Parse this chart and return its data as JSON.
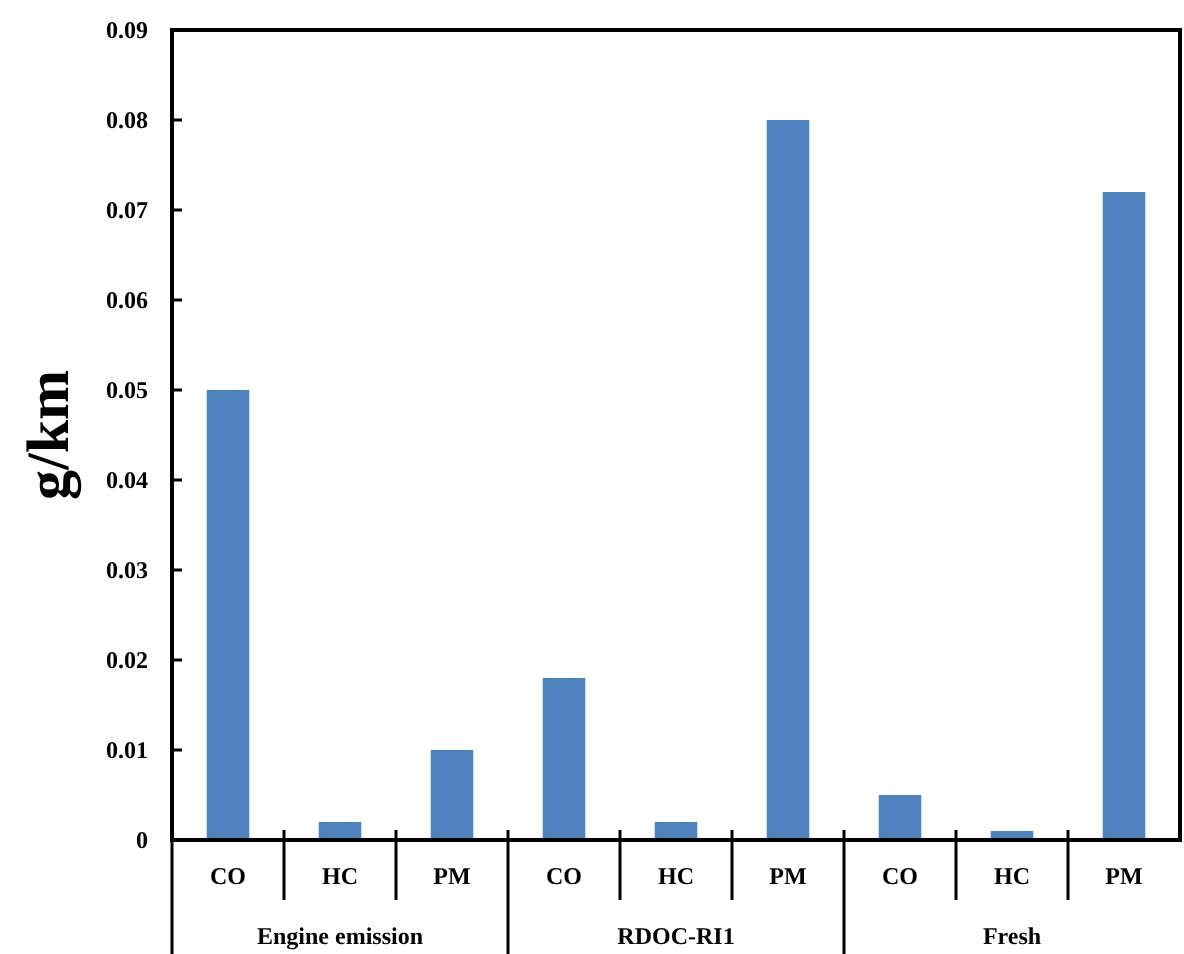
{
  "chart_data": {
    "type": "bar",
    "ylabel": "g/km",
    "categories": [
      "CO",
      "HC",
      "PM",
      "CO",
      "HC",
      "PM",
      "CO",
      "HC",
      "PM"
    ],
    "values": [
      0.05,
      0.002,
      0.01,
      0.018,
      0.002,
      0.08,
      0.005,
      0.001,
      0.072
    ],
    "color": "#4f81bd",
    "ylim": [
      0,
      0.09
    ],
    "yticks": [
      0,
      0.01,
      0.02,
      0.03,
      0.04,
      0.05,
      0.06,
      0.07,
      0.08,
      0.09
    ],
    "annotations": [
      "Engine emission",
      "RDOC-RI1",
      "Fresh"
    ],
    "grid": false
  }
}
